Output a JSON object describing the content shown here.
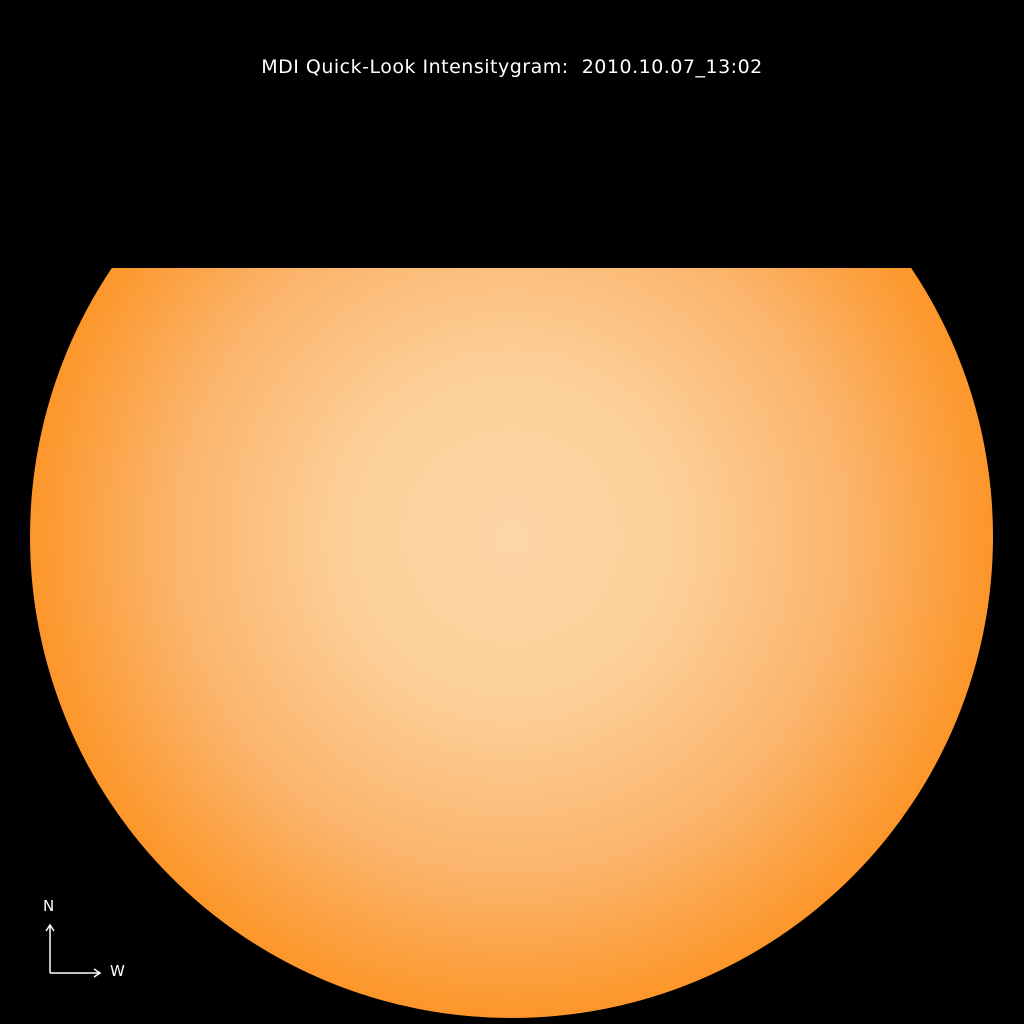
{
  "title": "MDI Quick-Look Intensitygram:  2010.10.07_13:02",
  "compass": {
    "north_label": "N",
    "west_label": "W"
  },
  "colors": {
    "background": "#000000",
    "disk_center": "#fdd6a6",
    "disk_mid": "#ff8a10",
    "disk_limb": "#9a0000"
  }
}
